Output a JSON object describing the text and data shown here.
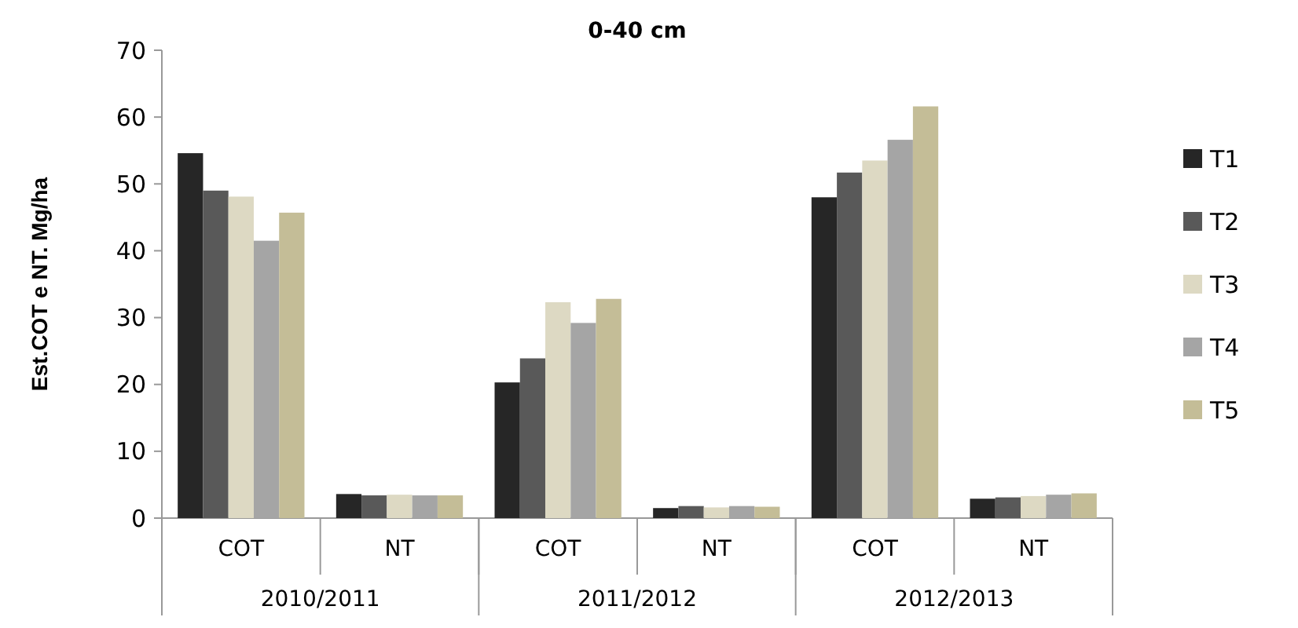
{
  "chart_data": {
    "type": "bar",
    "title": "0-40 cm",
    "ylabel": "Est.COT e NT. Mg/ha",
    "categories": [
      "COT",
      "NT",
      "COT",
      "NT",
      "COT",
      "NT"
    ],
    "annotations": [
      "2010/2011",
      "2011/2012",
      "2012/2013"
    ],
    "series": [
      {
        "name": "T1",
        "color": "#262626",
        "values": [
          54.6,
          3.6,
          20.3,
          1.5,
          48.0,
          2.9
        ]
      },
      {
        "name": "T2",
        "color": "#595959",
        "values": [
          49.0,
          3.4,
          23.9,
          1.8,
          51.7,
          3.1
        ]
      },
      {
        "name": "T3",
        "color": "#ddd9c3",
        "values": [
          48.1,
          3.5,
          32.3,
          1.6,
          53.5,
          3.3
        ]
      },
      {
        "name": "T4",
        "color": "#a5a5a5",
        "values": [
          41.5,
          3.4,
          29.2,
          1.8,
          56.6,
          3.5
        ]
      },
      {
        "name": "T5",
        "color": "#c4bd97",
        "values": [
          45.7,
          3.4,
          32.8,
          1.7,
          61.6,
          3.7
        ]
      }
    ],
    "ylim": [
      0,
      70
    ],
    "yticks": [
      0,
      10,
      20,
      30,
      40,
      50,
      60,
      70
    ],
    "grid": false,
    "legend": "right"
  }
}
